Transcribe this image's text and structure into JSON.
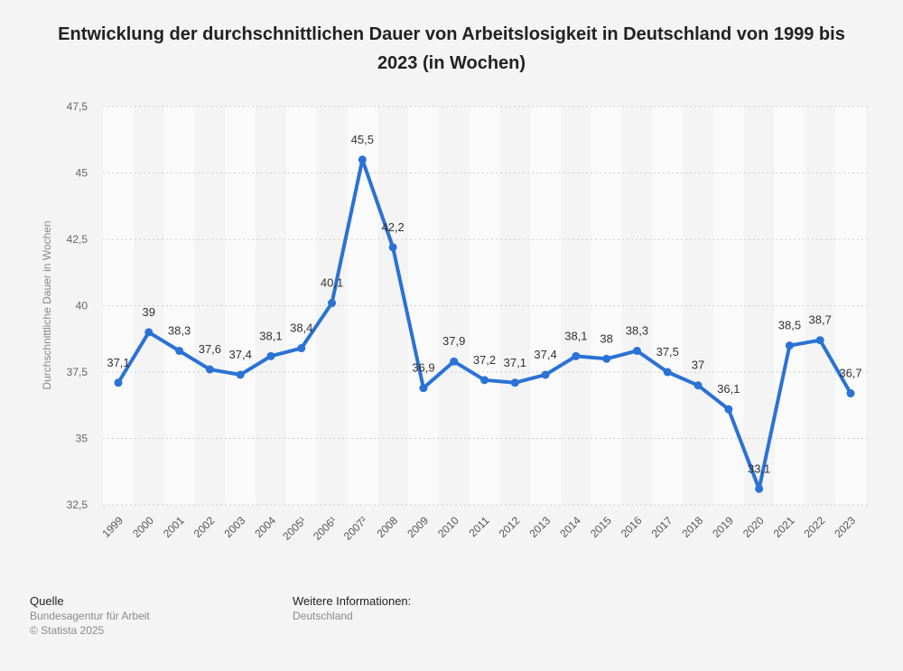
{
  "chart_data": {
    "type": "line",
    "title": "Entwicklung der durchschnittlichen Dauer von Arbeitslosigkeit in Deutschland von 1999 bis 2023 (in Wochen)",
    "ylabel": "Durchschnittliche Dauer in Wochen",
    "xlabel": "",
    "ylim": [
      32.5,
      47.5
    ],
    "yticks": [
      {
        "value": 32.5,
        "label": "32,5"
      },
      {
        "value": 35,
        "label": "35"
      },
      {
        "value": 37.5,
        "label": "37,5"
      },
      {
        "value": 40,
        "label": "40"
      },
      {
        "value": 42.5,
        "label": "42,5"
      },
      {
        "value": 45,
        "label": "45"
      },
      {
        "value": 47.5,
        "label": "47,5"
      }
    ],
    "grid": true,
    "categories": [
      "1999",
      "2000",
      "2001",
      "2002",
      "2003",
      "2004",
      "2005¹",
      "2006¹",
      "2007²",
      "2008",
      "2009",
      "2010",
      "2011",
      "2012",
      "2013",
      "2014",
      "2015",
      "2016",
      "2017",
      "2018",
      "2019",
      "2020",
      "2021",
      "2022",
      "2023"
    ],
    "values": [
      37.1,
      39,
      38.3,
      37.6,
      37.4,
      38.1,
      38.4,
      40.1,
      45.5,
      42.2,
      36.9,
      37.9,
      37.2,
      37.1,
      37.4,
      38.1,
      38,
      38.3,
      37.5,
      37,
      36.1,
      33.1,
      38.5,
      38.7,
      36.7
    ],
    "value_labels": [
      "37,1",
      "39",
      "38,3",
      "37,6",
      "37,4",
      "38,1",
      "38,4",
      "40,1",
      "45,5",
      "42,2",
      "36,9",
      "37,9",
      "37,2",
      "37,1",
      "37,4",
      "38,1",
      "38",
      "38,3",
      "37,5",
      "37",
      "36,1",
      "33,1",
      "38,5",
      "38,7",
      "36,7"
    ],
    "colors": {
      "line": "#2a72d5",
      "grid": "#cccccc",
      "band": "#ffffff"
    }
  },
  "footer": {
    "source_heading": "Quelle",
    "source_name": "Bundesagentur für Arbeit",
    "copyright": "© Statista 2025",
    "info_heading": "Weitere Informationen:",
    "info_region": "Deutschland"
  }
}
